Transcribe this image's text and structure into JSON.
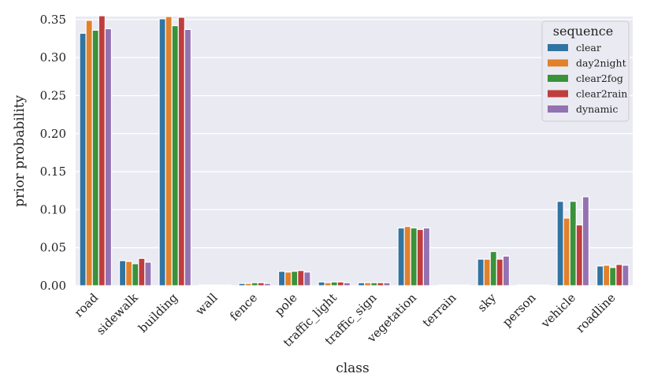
{
  "chart_data": {
    "type": "bar",
    "xlabel": "class",
    "ylabel": "prior probability",
    "ylim": [
      0,
      0.354
    ],
    "yticks": [
      "0.00",
      "0.05",
      "0.10",
      "0.15",
      "0.20",
      "0.25",
      "0.30",
      "0.35"
    ],
    "ytick_values": [
      0,
      0.05,
      0.1,
      0.15,
      0.2,
      0.25,
      0.3,
      0.35
    ],
    "grid": true,
    "legend": {
      "title": "sequence",
      "placement": "top-right"
    },
    "categories": [
      "road",
      "sidewalk",
      "building",
      "wall",
      "fence",
      "pole",
      "traffic_light",
      "traffic_sign",
      "vegetation",
      "terrain",
      "sky",
      "person",
      "vehicle",
      "roadline"
    ],
    "series": [
      {
        "name": "clear",
        "color": "#3274a1",
        "values": [
          0.332,
          0.033,
          0.351,
          0.001,
          0.003,
          0.019,
          0.005,
          0.004,
          0.076,
          0.001,
          0.035,
          0.001,
          0.111,
          0.026
        ]
      },
      {
        "name": "day2night",
        "color": "#e1812c",
        "values": [
          0.349,
          0.032,
          0.354,
          0.001,
          0.003,
          0.018,
          0.004,
          0.004,
          0.078,
          0.001,
          0.035,
          0.001,
          0.089,
          0.027
        ]
      },
      {
        "name": "clear2fog",
        "color": "#3a923a",
        "values": [
          0.336,
          0.029,
          0.342,
          0.001,
          0.004,
          0.019,
          0.005,
          0.004,
          0.076,
          0.001,
          0.045,
          0.001,
          0.111,
          0.024
        ]
      },
      {
        "name": "clear2rain",
        "color": "#c03d3e",
        "values": [
          0.355,
          0.036,
          0.353,
          0.001,
          0.004,
          0.02,
          0.005,
          0.004,
          0.074,
          0.001,
          0.035,
          0.001,
          0.08,
          0.028
        ]
      },
      {
        "name": "dynamic",
        "color": "#9372b2",
        "values": [
          0.338,
          0.031,
          0.337,
          0.001,
          0.003,
          0.018,
          0.004,
          0.004,
          0.076,
          0.001,
          0.039,
          0.001,
          0.117,
          0.027
        ]
      }
    ]
  }
}
